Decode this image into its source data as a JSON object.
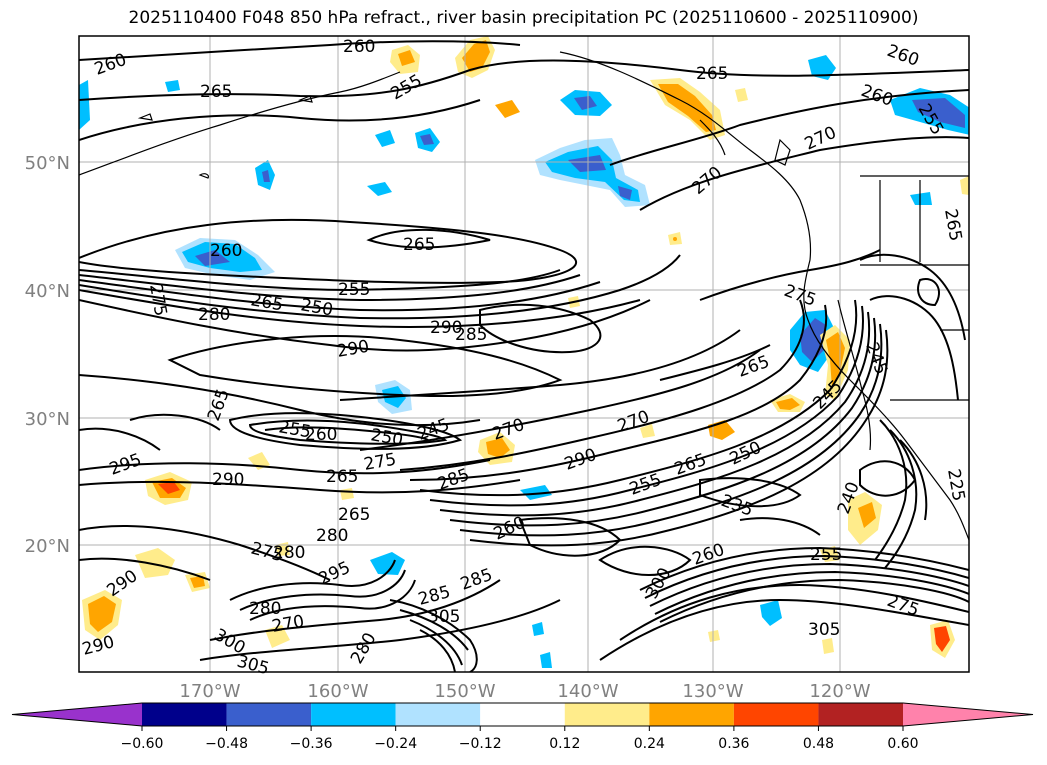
{
  "title": "2025110400 F048 850 hPa refract., river basin precipitation PC (2025110600 - 2025110900)",
  "map": {
    "lat_labels": [
      "50°N",
      "40°N",
      "30°N",
      "20°N"
    ],
    "lon_labels": [
      "170°W",
      "160°W",
      "150°W",
      "140°W",
      "130°W",
      "120°W"
    ],
    "axis_label_color": "#808080",
    "contour_labels": [
      {
        "text": "260",
        "ref": "a"
      },
      {
        "text": "265",
        "ref": "b"
      },
      {
        "text": "255",
        "ref": "c"
      },
      {
        "text": "260",
        "ref": "d"
      },
      {
        "text": "265",
        "ref": "e"
      },
      {
        "text": "260",
        "ref": "f"
      },
      {
        "text": "260",
        "ref": "g"
      },
      {
        "text": "255",
        "ref": "h"
      },
      {
        "text": "270",
        "ref": "i"
      },
      {
        "text": "270",
        "ref": "j"
      },
      {
        "text": "265",
        "ref": "k"
      },
      {
        "text": "260",
        "ref": "l"
      },
      {
        "text": "265",
        "ref": "m"
      },
      {
        "text": "275",
        "ref": "n"
      },
      {
        "text": "280",
        "ref": "o"
      },
      {
        "text": "265",
        "ref": "p"
      },
      {
        "text": "250",
        "ref": "q"
      },
      {
        "text": "255",
        "ref": "r"
      },
      {
        "text": "290",
        "ref": "s"
      },
      {
        "text": "285",
        "ref": "t"
      },
      {
        "text": "290",
        "ref": "u"
      },
      {
        "text": "275",
        "ref": "v"
      },
      {
        "text": "265",
        "ref": "w"
      },
      {
        "text": "245",
        "ref": "x"
      },
      {
        "text": "265",
        "ref": "y"
      },
      {
        "text": "255",
        "ref": "z"
      },
      {
        "text": "260",
        "ref": "aa"
      },
      {
        "text": "250",
        "ref": "ab"
      },
      {
        "text": "245",
        "ref": "ac"
      },
      {
        "text": "270",
        "ref": "ad"
      },
      {
        "text": "270",
        "ref": "ae"
      },
      {
        "text": "245",
        "ref": "af"
      },
      {
        "text": "285",
        "ref": "ag"
      },
      {
        "text": "295",
        "ref": "ah"
      },
      {
        "text": "290",
        "ref": "ai"
      },
      {
        "text": "265",
        "ref": "aj"
      },
      {
        "text": "275",
        "ref": "ak"
      },
      {
        "text": "290",
        "ref": "al"
      },
      {
        "text": "265",
        "ref": "am"
      },
      {
        "text": "250",
        "ref": "an"
      },
      {
        "text": "255",
        "ref": "ao"
      },
      {
        "text": "235",
        "ref": "ap"
      },
      {
        "text": "240",
        "ref": "aq"
      },
      {
        "text": "260",
        "ref": "ar"
      },
      {
        "text": "285",
        "ref": "as"
      },
      {
        "text": "280",
        "ref": "at"
      },
      {
        "text": "280",
        "ref": "au"
      },
      {
        "text": "275",
        "ref": "av"
      },
      {
        "text": "290",
        "ref": "aw"
      },
      {
        "text": "295",
        "ref": "ax"
      },
      {
        "text": "280",
        "ref": "ay"
      },
      {
        "text": "270",
        "ref": "az"
      },
      {
        "text": "285",
        "ref": "ba"
      },
      {
        "text": "305",
        "ref": "bb"
      },
      {
        "text": "300",
        "ref": "bc"
      },
      {
        "text": "305",
        "ref": "bd"
      },
      {
        "text": "290",
        "ref": "be"
      },
      {
        "text": "260",
        "ref": "bf"
      },
      {
        "text": "255",
        "ref": "bg"
      },
      {
        "text": "305",
        "ref": "bh"
      },
      {
        "text": "275",
        "ref": "bi"
      },
      {
        "text": "225",
        "ref": "bj"
      },
      {
        "text": "265",
        "ref": "bk"
      },
      {
        "text": "300",
        "ref": "bl"
      },
      {
        "text": "280",
        "ref": "bm"
      }
    ]
  },
  "colorbar": {
    "ticks": [
      "−0.60",
      "−0.48",
      "−0.36",
      "−0.24",
      "−0.12",
      "0.12",
      "0.24",
      "0.36",
      "0.48",
      "0.60"
    ],
    "colors": [
      "#9932cc",
      "#00008b",
      "#3a5fcd",
      "#00bfff",
      "#b0e2ff",
      "#ffffff",
      "#ffec8b",
      "#ffa500",
      "#ff4500",
      "#b22222",
      "#ff82ab"
    ]
  }
}
